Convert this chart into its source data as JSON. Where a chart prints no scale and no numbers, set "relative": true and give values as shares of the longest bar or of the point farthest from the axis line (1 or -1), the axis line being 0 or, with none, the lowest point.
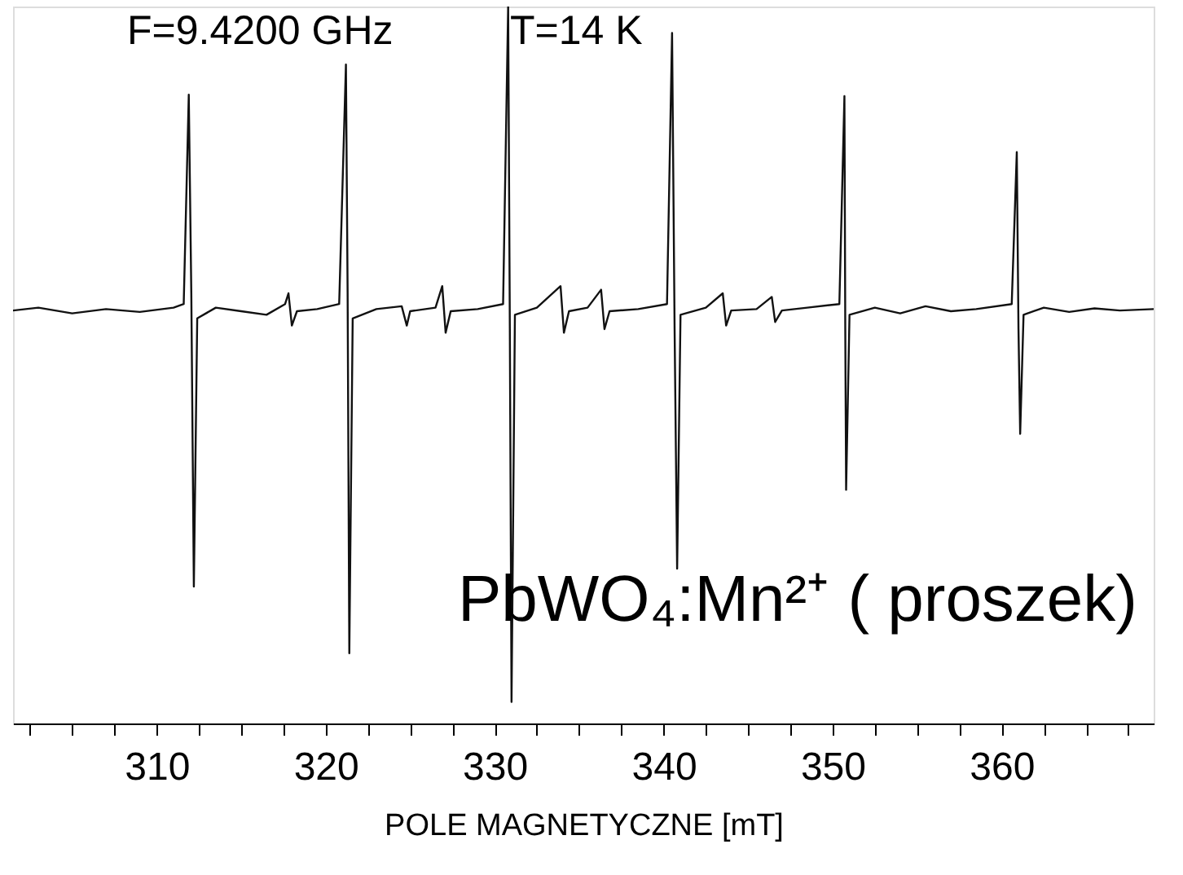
{
  "chart_data": {
    "type": "line",
    "relative": true,
    "xlabel": "POLE MAGNETYCZNE [mT]",
    "xlim": [
      301.5,
      369
    ],
    "xticks": [
      {
        "value": 302.5,
        "label": null
      },
      {
        "value": 305,
        "label": null
      },
      {
        "value": 307.5,
        "label": null
      },
      310,
      {
        "value": 312.5,
        "label": null
      },
      {
        "value": 315,
        "label": null
      },
      {
        "value": 317.5,
        "label": null
      },
      320,
      {
        "value": 322.5,
        "label": null
      },
      {
        "value": 325,
        "label": null
      },
      {
        "value": 327.5,
        "label": null
      },
      330,
      {
        "value": 332.5,
        "label": null
      },
      {
        "value": 335,
        "label": null
      },
      {
        "value": 337.5,
        "label": null
      },
      340,
      {
        "value": 342.5,
        "label": null
      },
      {
        "value": 345,
        "label": null
      },
      {
        "value": 347.5,
        "label": null
      },
      350,
      {
        "value": 352.5,
        "label": null
      },
      {
        "value": 355,
        "label": null
      },
      {
        "value": 357.5,
        "label": null
      },
      360,
      {
        "value": 362.5,
        "label": null
      },
      {
        "value": 365,
        "label": null
      },
      {
        "value": 367.5,
        "label": null
      }
    ],
    "tick_labels": "x",
    "grid": false,
    "line_style": "solid",
    "annotations": [
      "F=9.4200 GHz",
      "T=14 K",
      "PbWO₄:Mn²⁺  ( proszek)"
    ],
    "series": [
      {
        "color": "#111111",
        "x": [
          301.5,
          303,
          305,
          307,
          309,
          311,
          311.6,
          311.9,
          312.05,
          312.2,
          312.4,
          313.5,
          315,
          316.5,
          317.6,
          317.8,
          318,
          318.3,
          319.5,
          320.8,
          321.2,
          321.3,
          321.4,
          321.6,
          323,
          324.5,
          324.8,
          325,
          326.5,
          326.9,
          327.1,
          327.4,
          329,
          330.5,
          330.8,
          330.9,
          331,
          331.2,
          332.5,
          333.9,
          334.1,
          334.4,
          335.5,
          336.3,
          336.5,
          336.8,
          338.5,
          340.2,
          340.5,
          340.65,
          340.8,
          341,
          342.5,
          343.5,
          343.7,
          344,
          345.5,
          346.4,
          346.6,
          347,
          348.5,
          350.4,
          350.7,
          350.75,
          350.8,
          351,
          352.5,
          354,
          355.5,
          357,
          358.5,
          360.6,
          360.9,
          361,
          361.1,
          361.3,
          362.5,
          364,
          365.5,
          367,
          369
        ],
        "values": [
          0.576,
          0.58,
          0.572,
          0.578,
          0.574,
          0.58,
          0.585,
          0.877,
          0.6,
          0.191,
          0.565,
          0.58,
          0.575,
          0.57,
          0.585,
          0.6,
          0.555,
          0.575,
          0.578,
          0.585,
          0.919,
          0.6,
          0.098,
          0.565,
          0.578,
          0.582,
          0.555,
          0.575,
          0.58,
          0.61,
          0.545,
          0.575,
          0.578,
          0.585,
          1.0,
          0.55,
          0.03,
          0.57,
          0.58,
          0.61,
          0.545,
          0.575,
          0.58,
          0.605,
          0.55,
          0.575,
          0.578,
          0.585,
          0.963,
          0.55,
          0.216,
          0.57,
          0.58,
          0.6,
          0.555,
          0.576,
          0.578,
          0.595,
          0.56,
          0.576,
          0.58,
          0.585,
          0.875,
          0.55,
          0.326,
          0.57,
          0.58,
          0.572,
          0.582,
          0.575,
          0.578,
          0.585,
          0.797,
          0.55,
          0.404,
          0.57,
          0.58,
          0.574,
          0.579,
          0.576,
          0.578
        ]
      }
    ]
  }
}
